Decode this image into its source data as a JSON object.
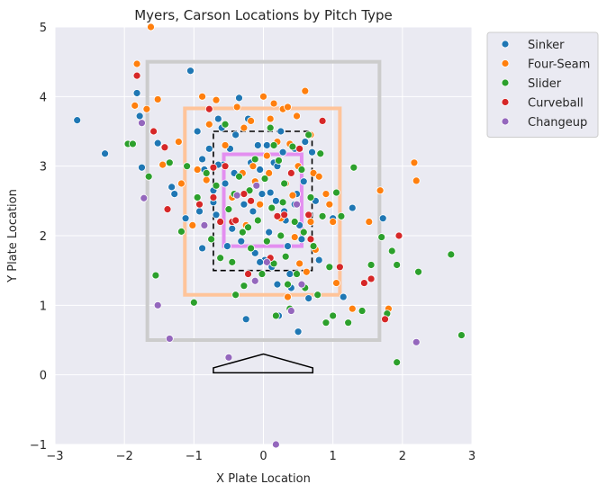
{
  "chart_data": {
    "type": "scatter",
    "title": "Myers, Carson Locations by Pitch Type",
    "xlabel": "X Plate Location",
    "ylabel": "Y Plate Location",
    "xlim": [
      -3,
      3
    ],
    "ylim": [
      -1,
      5
    ],
    "xticks": [
      "−3",
      "−2",
      "−1",
      "0",
      "1",
      "2",
      "3"
    ],
    "yticks": [
      "−1",
      "0",
      "1",
      "2",
      "3",
      "4",
      "5"
    ],
    "grid": true,
    "legend": "outside-right",
    "zones": {
      "outer": {
        "x": [
          -1.67,
          1.67
        ],
        "y": [
          0.5,
          4.5
        ],
        "color": "#cccccc"
      },
      "heart": {
        "x": [
          -1.13,
          1.1
        ],
        "y": [
          1.15,
          3.83
        ],
        "color": "#ffc49a"
      },
      "strike_zone": {
        "x": [
          -0.72,
          0.7
        ],
        "y": [
          1.5,
          3.5
        ],
        "color": "#000000"
      },
      "inner": {
        "x": [
          -0.57,
          0.55
        ],
        "y": [
          1.85,
          3.17
        ],
        "color": "#e38ff0"
      }
    },
    "home_plate": [
      [
        -0.72,
        0.03
      ],
      [
        0.71,
        0.03
      ],
      [
        0.71,
        0.1
      ],
      [
        0,
        0.3
      ],
      [
        -0.72,
        0.1
      ]
    ],
    "series": [
      {
        "name": "Sinker",
        "color": "#1f77b4",
        "points": [
          [
            -2.68,
            3.66
          ],
          [
            -2.28,
            3.18
          ],
          [
            -1.82,
            4.05
          ],
          [
            -1.78,
            3.72
          ],
          [
            -1.75,
            2.98
          ],
          [
            -1.52,
            3.33
          ],
          [
            -1.32,
            2.7
          ],
          [
            -1.28,
            2.6
          ],
          [
            -1.12,
            2.25
          ],
          [
            -1.05,
            4.37
          ],
          [
            -0.95,
            3.5
          ],
          [
            -0.88,
            3.1
          ],
          [
            -0.85,
            2.95
          ],
          [
            -0.92,
            2.35
          ],
          [
            -0.88,
            1.82
          ],
          [
            -0.78,
            3.25
          ],
          [
            -0.72,
            2.65
          ],
          [
            -0.68,
            2.3
          ],
          [
            -0.65,
            3.68
          ],
          [
            -0.6,
            3.55
          ],
          [
            -0.58,
            3.02
          ],
          [
            -0.55,
            2.75
          ],
          [
            -0.52,
            1.85
          ],
          [
            -0.48,
            3.25
          ],
          [
            -0.45,
            2.1
          ],
          [
            -0.4,
            3.45
          ],
          [
            -0.35,
            3.98
          ],
          [
            -0.32,
            1.92
          ],
          [
            -0.28,
            2.45
          ],
          [
            -0.25,
            0.8
          ],
          [
            -0.22,
            3.68
          ],
          [
            -0.18,
            3.05
          ],
          [
            -0.15,
            2.35
          ],
          [
            -0.12,
            1.75
          ],
          [
            -0.08,
            3.3
          ],
          [
            -0.05,
            2.95
          ],
          [
            -0.02,
            2.6
          ],
          [
            0.02,
            1.65
          ],
          [
            0.05,
            3.3
          ],
          [
            0.08,
            2.05
          ],
          [
            0.12,
            1.55
          ],
          [
            0.15,
            3.05
          ],
          [
            0.18,
            2.5
          ],
          [
            0.2,
            1.3
          ],
          [
            0.22,
            0.85
          ],
          [
            0.25,
            3.5
          ],
          [
            0.28,
            3.2
          ],
          [
            0.3,
            2.35
          ],
          [
            0.35,
            1.85
          ],
          [
            0.38,
            1.45
          ],
          [
            0.4,
            1.25
          ],
          [
            0.45,
            3.25
          ],
          [
            0.48,
            2.6
          ],
          [
            0.5,
            0.62
          ],
          [
            0.52,
            2.15
          ],
          [
            0.55,
            1.95
          ],
          [
            0.6,
            3.35
          ],
          [
            0.65,
            1.1
          ],
          [
            0.7,
            3.2
          ],
          [
            0.75,
            2.5
          ],
          [
            0.8,
            1.65
          ],
          [
            1.0,
            2.25
          ],
          [
            1.15,
            1.12
          ],
          [
            1.28,
            2.4
          ],
          [
            1.72,
            2.25
          ],
          [
            -0.65,
            3.02
          ],
          [
            -0.42,
            2.9
          ],
          [
            0.1,
            2.62
          ],
          [
            0.32,
            2.22
          ],
          [
            -0.05,
            1.62
          ],
          [
            0.58,
            2.78
          ],
          [
            -0.72,
            2.48
          ],
          [
            0.2,
            3.0
          ],
          [
            0.45,
            2.45
          ]
        ]
      },
      {
        "name": "Four-Seam",
        "color": "#ff7f0e",
        "points": [
          [
            -1.62,
            5.0
          ],
          [
            -1.82,
            4.47
          ],
          [
            -1.85,
            3.87
          ],
          [
            -1.68,
            3.82
          ],
          [
            -1.52,
            3.96
          ],
          [
            -1.45,
            3.02
          ],
          [
            -1.22,
            3.35
          ],
          [
            -1.18,
            2.75
          ],
          [
            -1.02,
            2.15
          ],
          [
            -0.88,
            4.0
          ],
          [
            -0.78,
            3.6
          ],
          [
            -0.82,
            2.8
          ],
          [
            -0.68,
            3.95
          ],
          [
            -0.55,
            3.3
          ],
          [
            -0.45,
            2.55
          ],
          [
            -0.38,
            3.85
          ],
          [
            -0.3,
            2.9
          ],
          [
            -0.25,
            2.15
          ],
          [
            -0.18,
            3.65
          ],
          [
            -0.12,
            2.78
          ],
          [
            -0.05,
            2.45
          ],
          [
            0.0,
            4.0
          ],
          [
            0.05,
            3.15
          ],
          [
            0.1,
            3.68
          ],
          [
            0.15,
            3.9
          ],
          [
            0.2,
            3.35
          ],
          [
            0.25,
            2.25
          ],
          [
            0.28,
            3.82
          ],
          [
            0.32,
            2.75
          ],
          [
            0.35,
            3.85
          ],
          [
            0.38,
            3.32
          ],
          [
            0.42,
            2.58
          ],
          [
            0.45,
            1.98
          ],
          [
            0.48,
            3.72
          ],
          [
            0.5,
            3.0
          ],
          [
            0.52,
            1.6
          ],
          [
            0.6,
            4.08
          ],
          [
            0.68,
            3.45
          ],
          [
            0.72,
            2.9
          ],
          [
            0.75,
            1.8
          ],
          [
            0.8,
            2.85
          ],
          [
            0.9,
            2.6
          ],
          [
            0.95,
            2.45
          ],
          [
            1.0,
            2.2
          ],
          [
            1.05,
            1.32
          ],
          [
            1.28,
            0.95
          ],
          [
            1.52,
            2.2
          ],
          [
            1.68,
            2.65
          ],
          [
            1.8,
            0.95
          ],
          [
            2.2,
            2.79
          ],
          [
            2.17,
            3.05
          ],
          [
            -0.95,
            2.95
          ],
          [
            -0.15,
            3.0
          ],
          [
            0.35,
            1.12
          ],
          [
            0.62,
            1.48
          ],
          [
            0.08,
            2.9
          ],
          [
            -0.28,
            3.55
          ],
          [
            0.68,
            2.2
          ]
        ]
      },
      {
        "name": "Slider",
        "color": "#2ca02c",
        "points": [
          [
            -1.95,
            3.32
          ],
          [
            -1.65,
            2.85
          ],
          [
            -1.55,
            1.43
          ],
          [
            -1.35,
            3.05
          ],
          [
            -1.18,
            2.06
          ],
          [
            -1.1,
            3.0
          ],
          [
            -1.0,
            1.04
          ],
          [
            -0.95,
            2.55
          ],
          [
            -0.82,
            2.9
          ],
          [
            -0.75,
            1.95
          ],
          [
            -0.68,
            2.72
          ],
          [
            -0.62,
            1.68
          ],
          [
            -0.55,
            3.6
          ],
          [
            -0.5,
            2.38
          ],
          [
            -0.45,
            1.62
          ],
          [
            -0.4,
            1.15
          ],
          [
            -0.35,
            2.85
          ],
          [
            -0.3,
            2.05
          ],
          [
            -0.28,
            1.28
          ],
          [
            -0.2,
            2.65
          ],
          [
            -0.18,
            1.82
          ],
          [
            -0.12,
            3.1
          ],
          [
            -0.08,
            2.22
          ],
          [
            -0.02,
            1.45
          ],
          [
            0.02,
            2.82
          ],
          [
            0.05,
            1.92
          ],
          [
            0.1,
            3.55
          ],
          [
            0.12,
            2.4
          ],
          [
            0.15,
            1.6
          ],
          [
            0.18,
            0.85
          ],
          [
            0.22,
            3.08
          ],
          [
            0.25,
            2.0
          ],
          [
            0.3,
            2.75
          ],
          [
            0.32,
            1.7
          ],
          [
            0.35,
            1.3
          ],
          [
            0.38,
            0.95
          ],
          [
            0.42,
            3.28
          ],
          [
            0.45,
            2.2
          ],
          [
            0.48,
            1.45
          ],
          [
            0.55,
            2.95
          ],
          [
            0.58,
            2.05
          ],
          [
            0.6,
            1.25
          ],
          [
            0.65,
            3.45
          ],
          [
            0.68,
            2.55
          ],
          [
            0.72,
            1.85
          ],
          [
            0.78,
            1.15
          ],
          [
            0.82,
            3.18
          ],
          [
            0.85,
            2.28
          ],
          [
            0.9,
            0.75
          ],
          [
            0.95,
            1.55
          ],
          [
            1.0,
            0.85
          ],
          [
            1.05,
            2.62
          ],
          [
            1.12,
            2.28
          ],
          [
            1.22,
            0.75
          ],
          [
            1.3,
            2.98
          ],
          [
            1.42,
            0.92
          ],
          [
            1.55,
            1.58
          ],
          [
            1.7,
            1.98
          ],
          [
            1.78,
            0.88
          ],
          [
            1.85,
            1.78
          ],
          [
            1.92,
            1.58
          ],
          [
            1.92,
            0.18
          ],
          [
            2.23,
            1.48
          ],
          [
            2.7,
            1.73
          ],
          [
            2.85,
            0.57
          ],
          [
            -1.88,
            3.32
          ],
          [
            -0.22,
            2.12
          ],
          [
            0.28,
            2.48
          ],
          [
            -0.42,
            2.6
          ],
          [
            0.15,
            3.3
          ]
        ]
      },
      {
        "name": "Curveball",
        "color": "#d62728",
        "points": [
          [
            -1.82,
            4.3
          ],
          [
            -1.58,
            3.5
          ],
          [
            -1.42,
            3.27
          ],
          [
            -1.38,
            2.38
          ],
          [
            -0.92,
            2.45
          ],
          [
            -0.78,
            3.82
          ],
          [
            -0.72,
            2.55
          ],
          [
            -0.62,
            2.2
          ],
          [
            -0.55,
            3.0
          ],
          [
            -0.45,
            2.2
          ],
          [
            -0.4,
            2.22
          ],
          [
            -0.28,
            2.6
          ],
          [
            -0.22,
            1.45
          ],
          [
            -0.18,
            2.5
          ],
          [
            0.1,
            1.68
          ],
          [
            0.3,
            2.3
          ],
          [
            0.4,
            2.9
          ],
          [
            0.52,
            3.25
          ],
          [
            0.65,
            2.3
          ],
          [
            0.68,
            1.95
          ],
          [
            0.85,
            3.65
          ],
          [
            1.1,
            1.55
          ],
          [
            1.45,
            1.32
          ],
          [
            1.55,
            1.38
          ],
          [
            1.75,
            0.8
          ],
          [
            1.95,
            2.0
          ],
          [
            -0.72,
            2.98
          ],
          [
            0.2,
            2.28
          ]
        ]
      },
      {
        "name": "Changeup",
        "color": "#9467bd",
        "points": [
          [
            -1.75,
            3.62
          ],
          [
            -1.72,
            2.54
          ],
          [
            -1.52,
            1.0
          ],
          [
            -1.35,
            0.52
          ],
          [
            -0.85,
            2.15
          ],
          [
            -0.5,
            0.25
          ],
          [
            -0.38,
            2.58
          ],
          [
            -0.12,
            1.35
          ],
          [
            0.05,
            1.62
          ],
          [
            0.18,
            -1.0
          ],
          [
            0.4,
            0.92
          ],
          [
            0.48,
            2.45
          ],
          [
            0.55,
            1.3
          ],
          [
            2.2,
            0.47
          ],
          [
            -0.1,
            2.72
          ]
        ]
      }
    ]
  }
}
